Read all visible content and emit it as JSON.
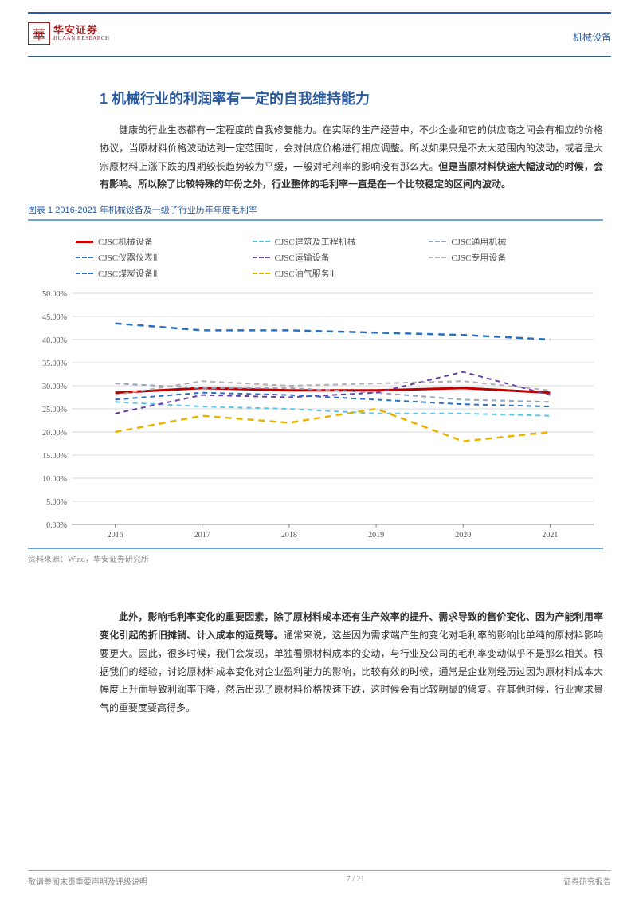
{
  "header": {
    "brand_cn": "华安证券",
    "brand_en": "HUAAN RESEARCH",
    "logo_glyph": "華",
    "top_right": "机械设备"
  },
  "section": {
    "title": "1 机械行业的利润率有一定的自我维持能力"
  },
  "paragraphs": {
    "p1a": "健康的行业生态都有一定程度的自我修复能力。在实际的生产经营中，不少企业和它的供应商之间会有相应的价格协议，当原材料价格波动达到一定范围时，会对供应价格进行相应调整。所以如果只是不太大范围内的波动，或者是大宗原材料上涨下跌的周期较长趋势较为平缓，一般对毛利率的影响没有那么大。",
    "p1b": "但是当原材料快速大幅波动的时候，会有影响。所以除了比较特殊的年份之外，行业整体的毛利率一直是在一个比较稳定的区间内波动。",
    "p2a": "此外，影响毛利率变化的重要因素，除了原材料成本还有生产效率的提升、需求导致的售价变化、因为产能利用率变化引起的折旧摊销、计入成本的运费等。",
    "p2b": "通常来说，这些因为需求端产生的变化对毛利率的影响比单纯的原材料影响要更大。因此，很多时候，我们会发现，单独看原材料成本的变动，与行业及公司的毛利率变动似乎不是那么相关。根据我们的经验，讨论原材料成本变化对企业盈利能力的影响，比较有效的时候，通常是企业刚经历过因为原材料成本大幅度上升而导致利润率下降，然后出现了原材料价格快速下跌，这时候会有比较明显的修复。在其他时候，行业需求景气的重要度要高得多。"
  },
  "chart": {
    "title": "图表 1 2016-2021 年机械设备及一级子行业历年年度毛利率",
    "source": "资料来源：Wind，华安证券研究所",
    "x_labels": [
      "2016",
      "2017",
      "2018",
      "2019",
      "2020",
      "2021"
    ],
    "y_min": 0,
    "y_max": 50,
    "y_step": 5,
    "y_format": "pct",
    "grid_color": "#d9d9d9",
    "axis_color": "#888",
    "text_color": "#555",
    "series": [
      {
        "name": "CJSC机械设备",
        "color": "#c00000",
        "dash": "none",
        "width": 3,
        "values": [
          28.5,
          29.5,
          29.0,
          29.0,
          29.5,
          28.5
        ]
      },
      {
        "name": "CJSC建筑及工程机械",
        "color": "#5bc6e8",
        "dash": "6,5",
        "width": 2,
        "values": [
          26.5,
          25.5,
          25.0,
          24.0,
          24.0,
          23.5
        ]
      },
      {
        "name": "CJSC通用机械",
        "color": "#95a3b8",
        "dash": "6,5",
        "width": 2,
        "values": [
          30.5,
          29.5,
          29.5,
          28.5,
          27.0,
          26.5
        ]
      },
      {
        "name": "CJSC仪器仪表Ⅱ",
        "color": "#2a6fbf",
        "dash": "8,6",
        "width": 2.5,
        "values": [
          43.5,
          42.0,
          42.0,
          41.5,
          41.0,
          40.0
        ]
      },
      {
        "name": "CJSC运输设备",
        "color": "#6a3ea8",
        "dash": "6,5",
        "width": 2,
        "values": [
          24.0,
          28.0,
          27.5,
          28.5,
          33.0,
          28.0
        ]
      },
      {
        "name": "CJSC专用设备",
        "color": "#b0b0b0",
        "dash": "6,5",
        "width": 2,
        "values": [
          28.0,
          31.0,
          30.0,
          30.5,
          31.0,
          29.0
        ]
      },
      {
        "name": "CJSC煤炭设备Ⅱ",
        "color": "#2a6fbf",
        "dash": "6,5",
        "width": 2,
        "values": [
          27.0,
          28.5,
          28.0,
          27.0,
          26.0,
          25.5
        ]
      },
      {
        "name": "CJSC油气服务Ⅱ",
        "color": "#e8b400",
        "dash": "8,6",
        "width": 2.5,
        "values": [
          20.0,
          23.5,
          22.0,
          25.0,
          18.0,
          20.0
        ]
      }
    ],
    "legend_order": [
      0,
      1,
      2,
      3,
      4,
      5,
      6,
      7
    ]
  },
  "footer": {
    "left": "敬请参阅末页重要声明及评级说明",
    "center": "7 / 21",
    "right": "证券研究报告"
  }
}
